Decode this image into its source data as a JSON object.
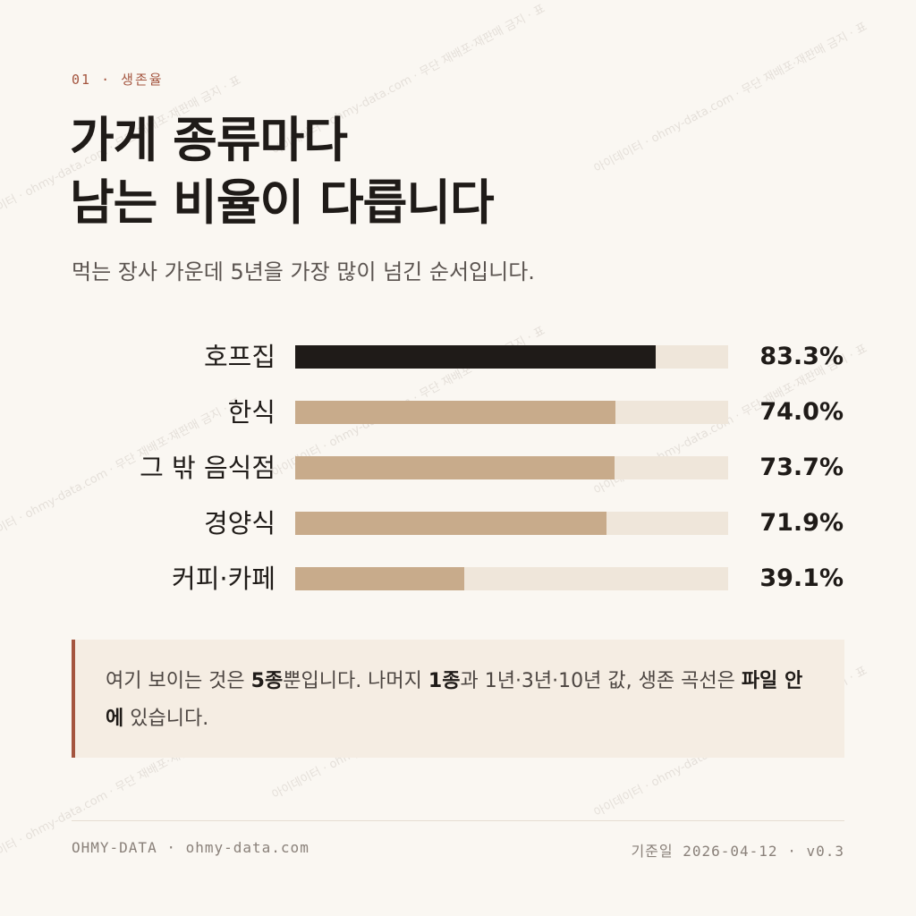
{
  "header": {
    "kicker": "01 · 생존율",
    "title_line1": "가게 종류마다",
    "title_line2": "남는 비율이 다릅니다",
    "subtitle": "먹는 장사 가운데 5년을 가장 많이 넘긴 순서입니다."
  },
  "chart_data": {
    "type": "bar",
    "orientation": "horizontal",
    "categories": [
      "호프집",
      "한식",
      "그 밖 음식점",
      "경양식",
      "커피·카페"
    ],
    "values": [
      83.3,
      74.0,
      73.7,
      71.9,
      39.1
    ],
    "value_labels": [
      "83.3%",
      "74.0%",
      "73.7%",
      "71.9%",
      "39.1%"
    ],
    "xlim": [
      0,
      100
    ],
    "grid": false,
    "colors": {
      "highlight": "#1f1b18",
      "default": "#c8ab8b",
      "track": "#efe6da"
    },
    "highlight_index": 0
  },
  "note": {
    "t1": "여기 보이는 것은 ",
    "b1": "5종",
    "t2": "뿐입니다. 나머지 ",
    "b2": "1종",
    "t3": "과 1년·3년·10년 값, 생존 곡선은 ",
    "b3": "파일 안에",
    "t4": " 있습니다."
  },
  "footer": {
    "left": "OHMY-DATA · ohmy-data.com",
    "right": "기준일 2026-04-12 · v0.3"
  },
  "watermark": "아이데이터 · ohmy-data.com · 무단 재배포·재판매 금지 · 표",
  "colors": {
    "accent": "#a4553f",
    "background": "#faf7f2",
    "note_bg": "#f5ede3"
  }
}
